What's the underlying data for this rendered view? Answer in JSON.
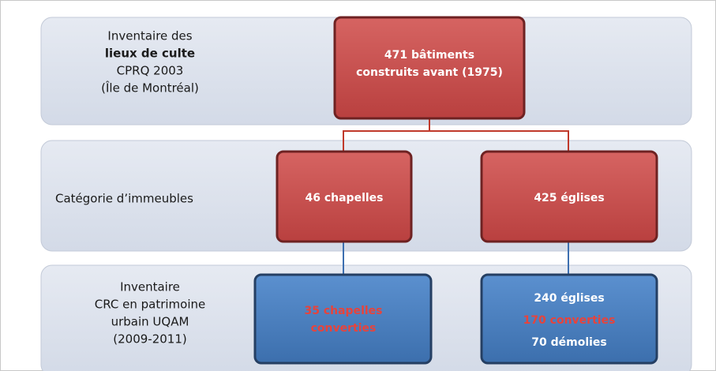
{
  "rows": [
    {
      "label": [
        "Inventaire des",
        "lieux de culte",
        "CPRQ 2003",
        "(Île de Montréal)"
      ]
    },
    {
      "label": [
        "Catégorie d’immeubles"
      ]
    },
    {
      "label": [
        "Inventaire",
        "CRC en patrimoine",
        "urbain UQAM",
        "(2009-2011)"
      ]
    }
  ],
  "nodes": [
    {
      "lines": [
        "471 bâtiments",
        "construits avant (1975)"
      ]
    },
    {
      "lines": [
        "46 chapelles"
      ]
    },
    {
      "lines": [
        "425 églises"
      ]
    },
    {
      "lines": [
        "35 chapelles",
        "converties"
      ]
    },
    {
      "lines": [
        "240 églises",
        "170 converties",
        "70 démolies"
      ]
    }
  ]
}
